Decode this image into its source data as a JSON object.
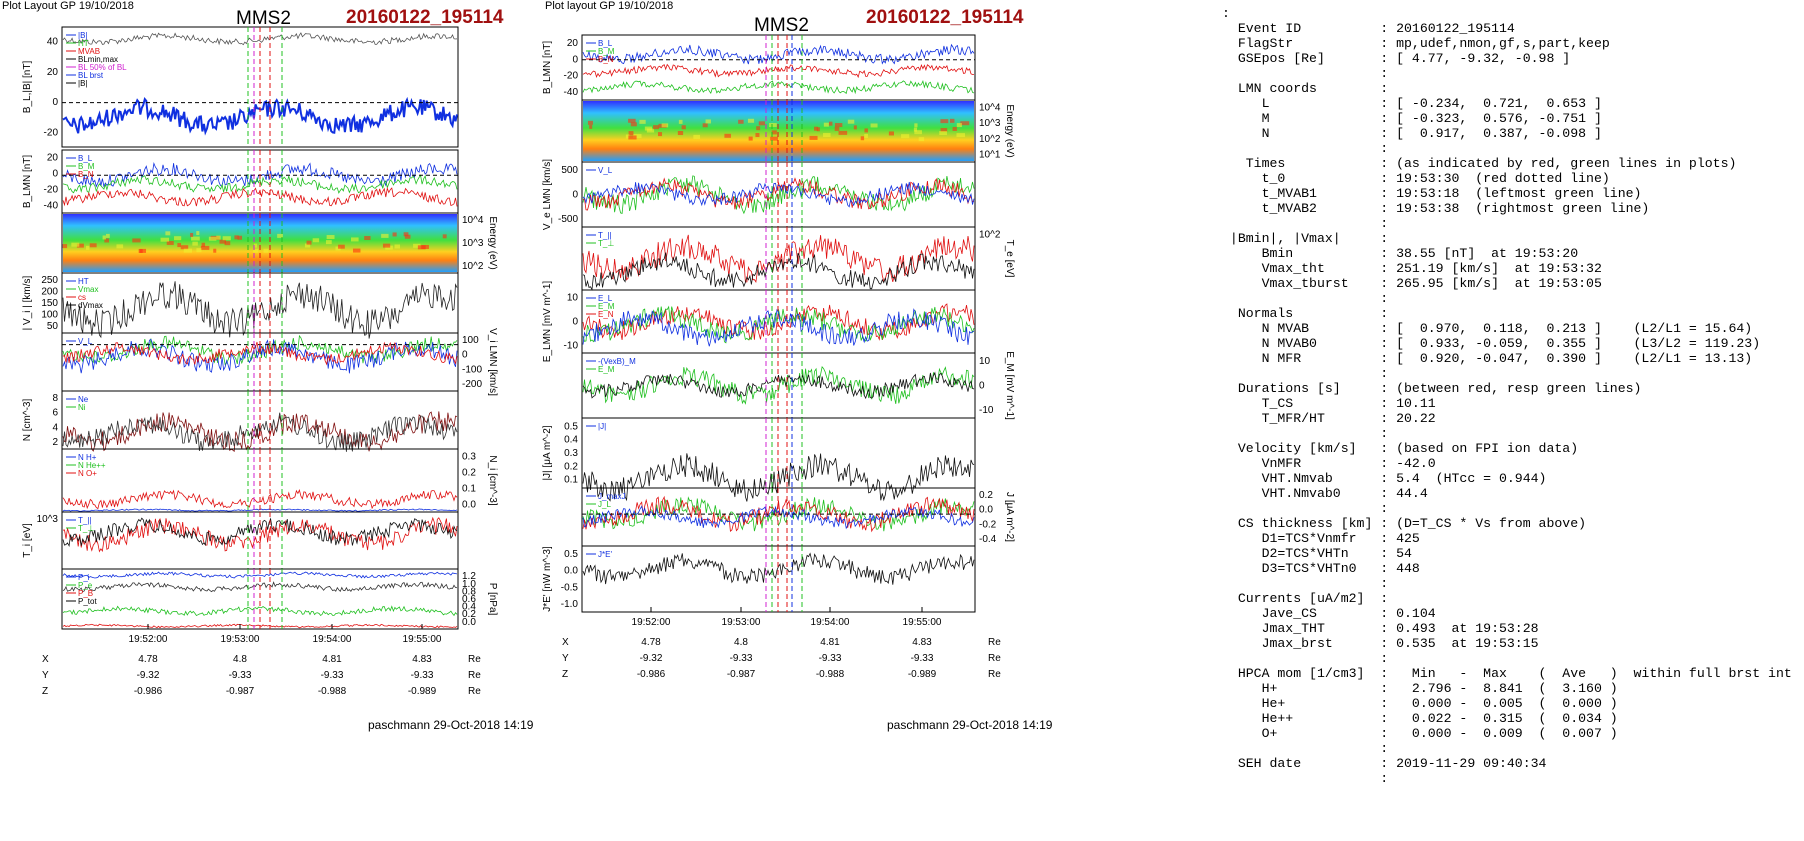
{
  "left": {
    "header": "Plot Layout GP 19/10/2018",
    "spacecraft": "MMS2",
    "event": "20160122_195114",
    "footer": "paschmann 29-Oct-2018 14:19",
    "time_ticks": [
      "19:52:00",
      "19:53:00",
      "19:54:00",
      "19:55:00"
    ],
    "panels": [
      {
        "ylabel": "B_L,|B| [nT]",
        "legend": [
          "|B|",
          "HT",
          "MVAB",
          "BLmin,max",
          "BL 50% of BL",
          "BL brst",
          "|B|"
        ],
        "yticks": [
          "40",
          "20",
          "0",
          "-20"
        ],
        "right_label": "",
        "right_ticks": []
      },
      {
        "ylabel": "B_LMN [nT]",
        "legend": [
          "B_L",
          "B_M",
          "B_N"
        ],
        "yticks": [
          "20",
          "0",
          "-20",
          "-40"
        ],
        "right_label": "",
        "right_ticks": []
      },
      {
        "ylabel": "",
        "legend": [],
        "yticks": [],
        "right_label": "Energy (eV)",
        "right_ticks": [
          "10^4",
          "10^3",
          "10^2"
        ]
      },
      {
        "ylabel": "| V_i | [km/s]",
        "legend": [
          "HT",
          "Vmax",
          "cs",
          "dVmax"
        ],
        "yticks": [
          "250",
          "200",
          "150",
          "100",
          "50"
        ],
        "right_label": "",
        "right_ticks": []
      },
      {
        "ylabel": "",
        "legend": [
          "V_L"
        ],
        "yticks": [],
        "right_label": "V_i LMN [km/s]",
        "right_ticks": [
          "100",
          "0",
          "-100",
          "-200"
        ]
      },
      {
        "ylabel": "N [cm^-3]",
        "legend": [
          "Ne",
          "Ni"
        ],
        "yticks": [
          "8",
          "6",
          "4",
          "2"
        ],
        "right_label": "",
        "right_ticks": []
      },
      {
        "ylabel": "",
        "legend": [
          "N H+",
          "N He++",
          "N O+"
        ],
        "yticks": [],
        "right_label": "N_i [cm^-3]",
        "right_ticks": [
          "0.3",
          "0.2",
          "0.1",
          "0.0"
        ]
      },
      {
        "ylabel": "T_i [eV]",
        "legend": [
          "T_||",
          "T_⊥"
        ],
        "yticks": [
          "10^3"
        ],
        "right_label": "",
        "right_ticks": []
      },
      {
        "ylabel": "",
        "legend": [
          "P_i",
          "P_e",
          "P_B",
          "P_tot"
        ],
        "yticks": [],
        "right_label": "P [nPa]",
        "right_ticks": [
          "1.2",
          "1.0",
          "0.8",
          "0.6",
          "0.4",
          "0.2",
          "0.0"
        ]
      }
    ],
    "coords": {
      "rows": [
        {
          "label": "X",
          "values": [
            "4.78",
            "4.8",
            "4.81",
            "4.83"
          ],
          "unit": "Re"
        },
        {
          "label": "Y",
          "values": [
            "-9.32",
            "-9.33",
            "-9.33",
            "-9.33"
          ],
          "unit": "Re"
        },
        {
          "label": "Z",
          "values": [
            "-0.986",
            "-0.987",
            "-0.988",
            "-0.989"
          ],
          "unit": "Re"
        }
      ]
    }
  },
  "middle": {
    "header": "Plot layout GP 19/10/2018",
    "spacecraft": "MMS2",
    "event": "20160122_195114",
    "footer": "paschmann 29-Oct-2018 14:19",
    "time_ticks": [
      "19:52:00",
      "19:53:00",
      "19:54:00",
      "19:55:00"
    ],
    "panels": [
      {
        "ylabel": "B_LMN [nT]",
        "legend": [
          "B_L",
          "B_M",
          "B_N"
        ],
        "yticks": [
          "20",
          "0",
          "-20",
          "-40"
        ],
        "right_label": "",
        "right_ticks": []
      },
      {
        "ylabel": "",
        "legend": [],
        "yticks": [],
        "right_label": "Energy (eV)",
        "right_ticks": [
          "10^4",
          "10^3",
          "10^2",
          "10^1"
        ]
      },
      {
        "ylabel": "V_e LMN [km/s]",
        "legend": [
          "V_L"
        ],
        "yticks": [
          "500",
          "0",
          "-500"
        ],
        "right_label": "",
        "right_ticks": []
      },
      {
        "ylabel": "",
        "legend": [
          "T_||",
          "T_⊥"
        ],
        "yticks": [],
        "right_label": "T_e [eV]",
        "right_ticks": [
          "10^2"
        ]
      },
      {
        "ylabel": "E_LMN [mV m^-1]",
        "legend": [
          "E_L",
          "E_M",
          "E_N"
        ],
        "yticks": [
          "10",
          "0",
          "-10"
        ],
        "right_label": "",
        "right_ticks": []
      },
      {
        "ylabel": "",
        "legend": [
          "-(VexB)_M",
          "E_M"
        ],
        "yticks": [],
        "right_label": "E_M [mV m^-1]",
        "right_ticks": [
          "10",
          "0",
          "-10"
        ]
      },
      {
        "ylabel": "|J| [μA m^-2]",
        "legend": [
          "|J|"
        ],
        "yticks": [
          "0.5",
          "0.4",
          "0.3",
          "0.2",
          "0.1"
        ],
        "right_label": "",
        "right_ticks": []
      },
      {
        "ylabel": "",
        "legend": [
          "J_maxJ",
          "J_L"
        ],
        "yticks": [],
        "right_label": "J [μA m^-2]",
        "right_ticks": [
          "0.2",
          "0.0",
          "-0.2",
          "-0.4"
        ]
      },
      {
        "ylabel": "J*E' [nW m^-3]",
        "legend": [
          "J*E'"
        ],
        "yticks": [
          "0.5",
          "0.0",
          "-0.5",
          "-1.0"
        ],
        "right_label": "",
        "right_ticks": []
      }
    ],
    "coords": {
      "rows": [
        {
          "label": "X",
          "values": [
            "4.78",
            "4.8",
            "4.81",
            "4.83"
          ],
          "unit": "Re"
        },
        {
          "label": "Y",
          "values": [
            "-9.32",
            "-9.33",
            "-9.33",
            "-9.33"
          ],
          "unit": "Re"
        },
        {
          "label": "Z",
          "values": [
            "-0.986",
            "-0.987",
            "-0.988",
            "-0.989"
          ],
          "unit": "Re"
        }
      ]
    }
  },
  "info_text": [
    ":",
    "  Event ID          : 20160122_195114",
    "  FlagStr           : mp,udef,nmon,gf,s,part,keep",
    "  GSEpos [Re]       : [ 4.77, -9.32, -0.98 ]",
    "                    :",
    "  LMN coords        :",
    "     L              : [ -0.234,  0.721,  0.653 ]",
    "     M              : [ -0.323,  0.576, -0.751 ]",
    "     N              : [  0.917,  0.387, -0.098 ]",
    "                    :",
    "   Times            : (as indicated by red, green lines in plots)",
    "     t_0            : 19:53:30  (red dotted line)",
    "     t_MVAB1        : 19:53:18  (leftmost green line)",
    "     t_MVAB2        : 19:53:38  (rightmost green line)",
    "                    :",
    " |Bmin|, |Vmax|     :",
    "     Bmin           : 38.55 [nT]  at 19:53:20",
    "     Vmax_tht       : 251.19 [km/s]  at 19:53:32",
    "     Vmax_tburst    : 265.95 [km/s]  at 19:53:05",
    "                    :",
    "  Normals           :",
    "     N MVAB         : [  0.970,  0.118,  0.213 ]    (L2/L1 = 15.64)",
    "     N MVAB0        : [  0.933, -0.059,  0.355 ]    (L3/L2 = 119.23)",
    "     N MFR          : [  0.920, -0.047,  0.390 ]    (L2/L1 = 13.13)",
    "                    :",
    "  Durations [s]     : (between red, resp green lines)",
    "     T_CS           : 10.11",
    "     T_MFR/HT       : 20.22",
    "                    :",
    "  Velocity [km/s]   : (based on FPI ion data)",
    "     VnMFR          : -42.0",
    "     VHT.Nmvab      : 5.4  (HTcc = 0.944)",
    "     VHT.Nmvab0     : 44.4",
    "                    :",
    "  CS thickness [km] : (D=T_CS * Vs from above)",
    "     D1=TCS*Vnmfr   : 425",
    "     D2=TCS*VHTn    : 54",
    "     D3=TCS*VHTn0   : 448",
    "                    :",
    "  Currents [uA/m2]  :",
    "     Jave_CS        : 0.104",
    "     Jmax_THT       : 0.493  at 19:53:28",
    "     Jmax_brst      : 0.535  at 19:53:15",
    "                    :",
    "  HPCA mom [1/cm3]  :   Min   -  Max    (  Ave   )  within full brst int",
    "     H+             :   2.796 -  8.841  (  3.160 )",
    "     He+            :   0.000 -  0.005  (  0.000 )",
    "     He++           :   0.022 -  0.315  (  0.034 )",
    "     O+             :   0.000 -  0.009  (  0.007 )",
    "                    :",
    "  SEH date          : 2019-11-29 09:40:34",
    "                    :"
  ],
  "colors": {
    "event_red": "#a01010",
    "blue": "#1030e0",
    "red": "#e01010",
    "green": "#20c020",
    "black": "#000000",
    "magenta": "#d020d0"
  },
  "chart_data": [
    {
      "type": "line",
      "title": "MMS2",
      "subtitle": "20160122_195114",
      "x": [
        "19:52:00",
        "19:53:00",
        "19:54:00",
        "19:55:00"
      ],
      "ylabel": "B_L,|B| [nT]",
      "ylim": [
        -35,
        55
      ],
      "series": [
        {
          "name": "|B|",
          "values": [
            47,
            45,
            45,
            47
          ]
        },
        {
          "name": "BL brst",
          "values": [
            -15,
            -18,
            15,
            -12
          ]
        }
      ]
    },
    {
      "type": "line",
      "title": "MMS2",
      "subtitle": "20160122_195114",
      "x": [
        "19:52:00",
        "19:53:00",
        "19:54:00",
        "19:55:00"
      ],
      "ylabel": "B_LMN [nT]",
      "ylim": [
        -50,
        25
      ],
      "series": [
        {
          "name": "B_L",
          "values": [
            -12,
            -15,
            10,
            -10
          ]
        },
        {
          "name": "B_M",
          "values": [
            -20,
            -20,
            -18,
            -18
          ]
        },
        {
          "name": "B_N",
          "values": [
            -38,
            -40,
            -32,
            -35
          ]
        }
      ]
    }
  ]
}
